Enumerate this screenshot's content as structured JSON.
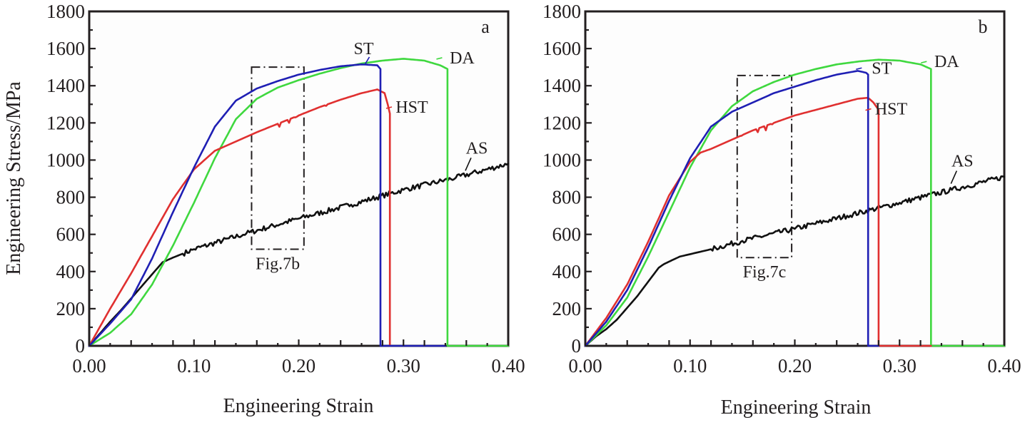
{
  "figure": {
    "y_axis_title": "Engineering Stress/MPa",
    "x_axis_title": "Engineering Strain"
  },
  "chart_data": [
    {
      "type": "line",
      "panel_label": "a",
      "title": "",
      "xlabel": "Engineering Strain",
      "ylabel": "Engineering Stress/MPa",
      "xlim": [
        0,
        0.4
      ],
      "ylim": [
        0,
        1800
      ],
      "x_ticks": [
        "0.00",
        "0.10",
        "0.20",
        "0.30",
        "0.40"
      ],
      "x_tick_values": [
        0,
        0.1,
        0.2,
        0.3,
        0.4
      ],
      "y_ticks": [
        "0",
        "200",
        "400",
        "600",
        "800",
        "1000",
        "1200",
        "1400",
        "1600",
        "1800"
      ],
      "y_tick_values": [
        0,
        200,
        400,
        600,
        800,
        1000,
        1200,
        1400,
        1600,
        1800
      ],
      "grid": false,
      "legend": "none (direct labels)",
      "series": [
        {
          "name": "ST",
          "color": "#1f1fb4",
          "label_at": [
            0.262,
            1570
          ],
          "x": [
            0,
            0.02,
            0.04,
            0.06,
            0.08,
            0.1,
            0.12,
            0.14,
            0.16,
            0.18,
            0.2,
            0.22,
            0.24,
            0.26,
            0.275,
            0.278,
            0.278,
            0.34
          ],
          "y": [
            0,
            120,
            250,
            470,
            720,
            960,
            1180,
            1320,
            1385,
            1425,
            1460,
            1485,
            1505,
            1515,
            1510,
            1490,
            0,
            0
          ]
        },
        {
          "name": "HST",
          "color": "#e03030",
          "label_at": [
            0.308,
            1255
          ],
          "serrated_range": [
            0.18,
            0.23
          ],
          "x": [
            0,
            0.02,
            0.04,
            0.06,
            0.08,
            0.1,
            0.12,
            0.14,
            0.16,
            0.18,
            0.2,
            0.22,
            0.24,
            0.26,
            0.275,
            0.282,
            0.285,
            0.287,
            0.287
          ],
          "y": [
            0,
            200,
            390,
            590,
            790,
            950,
            1050,
            1100,
            1150,
            1195,
            1240,
            1285,
            1325,
            1360,
            1380,
            1360,
            1300,
            1250,
            0
          ]
        },
        {
          "name": "DA",
          "color": "#3fd83f",
          "label_at": [
            0.356,
            1520
          ],
          "x": [
            0,
            0.02,
            0.04,
            0.06,
            0.08,
            0.1,
            0.12,
            0.14,
            0.16,
            0.18,
            0.2,
            0.22,
            0.24,
            0.26,
            0.28,
            0.3,
            0.32,
            0.335,
            0.342,
            0.342,
            0.4
          ],
          "y": [
            0,
            70,
            170,
            330,
            540,
            770,
            1010,
            1220,
            1330,
            1390,
            1430,
            1465,
            1495,
            1520,
            1535,
            1545,
            1535,
            1510,
            1490,
            0,
            0
          ]
        },
        {
          "name": "AS",
          "color": "#111111",
          "label_at": [
            0.37,
            1035
          ],
          "serrated_range": [
            0.09,
            0.4
          ],
          "x": [
            0,
            0.02,
            0.03,
            0.05,
            0.07,
            0.08,
            0.1,
            0.15,
            0.2,
            0.25,
            0.3,
            0.35,
            0.4
          ],
          "y": [
            0,
            130,
            190,
            320,
            450,
            475,
            520,
            605,
            685,
            760,
            840,
            905,
            980
          ]
        }
      ],
      "annotations": [
        {
          "text": "Fig.7b",
          "box_x": [
            0.155,
            0.205
          ],
          "box_y": [
            520,
            1500
          ]
        }
      ]
    },
    {
      "type": "line",
      "panel_label": "b",
      "title": "",
      "xlabel": "Engineering Strain",
      "ylabel": "",
      "xlim": [
        0,
        0.4
      ],
      "ylim": [
        0,
        1800
      ],
      "x_ticks": [
        "0.00",
        "0.10",
        "0.20",
        "0.30",
        "0.40"
      ],
      "x_tick_values": [
        0,
        0.1,
        0.2,
        0.3,
        0.4
      ],
      "y_ticks": [
        "0",
        "200",
        "400",
        "600",
        "800",
        "1000",
        "1200",
        "1400",
        "1600",
        "1800"
      ],
      "y_tick_values": [
        0,
        200,
        400,
        600,
        800,
        1000,
        1200,
        1400,
        1600,
        1800
      ],
      "grid": false,
      "legend": "none (direct labels)",
      "series": [
        {
          "name": "ST",
          "color": "#1f1fb4",
          "label_at": [
            0.283,
            1465
          ],
          "x": [
            0,
            0.02,
            0.04,
            0.06,
            0.08,
            0.1,
            0.12,
            0.14,
            0.16,
            0.18,
            0.2,
            0.22,
            0.24,
            0.26,
            0.268,
            0.27,
            0.27,
            0.28
          ],
          "y": [
            0,
            130,
            300,
            530,
            780,
            1010,
            1180,
            1260,
            1310,
            1360,
            1395,
            1430,
            1460,
            1480,
            1470,
            1460,
            0,
            0
          ]
        },
        {
          "name": "HST",
          "color": "#e03030",
          "label_at": [
            0.292,
            1245
          ],
          "serrated_range": [
            0.14,
            0.21
          ],
          "x": [
            0,
            0.02,
            0.04,
            0.06,
            0.08,
            0.1,
            0.11,
            0.12,
            0.14,
            0.16,
            0.18,
            0.2,
            0.22,
            0.24,
            0.26,
            0.27,
            0.275,
            0.28,
            0.28,
            0.33
          ],
          "y": [
            0,
            150,
            330,
            560,
            810,
            990,
            1040,
            1060,
            1110,
            1160,
            1200,
            1240,
            1270,
            1300,
            1330,
            1335,
            1310,
            1270,
            0,
            0
          ]
        },
        {
          "name": "DA",
          "color": "#3fd83f",
          "label_at": [
            0.345,
            1500
          ],
          "x": [
            0,
            0.02,
            0.04,
            0.06,
            0.08,
            0.1,
            0.12,
            0.14,
            0.16,
            0.18,
            0.2,
            0.22,
            0.24,
            0.26,
            0.28,
            0.3,
            0.32,
            0.33,
            0.33,
            0.4
          ],
          "y": [
            0,
            110,
            260,
            480,
            720,
            960,
            1160,
            1290,
            1370,
            1420,
            1460,
            1490,
            1515,
            1530,
            1540,
            1535,
            1515,
            1490,
            0,
            0
          ]
        },
        {
          "name": "AS",
          "color": "#111111",
          "label_at": [
            0.36,
            965
          ],
          "serrated_range": [
            0.12,
            0.4
          ],
          "x": [
            0,
            0.01,
            0.02,
            0.03,
            0.05,
            0.07,
            0.075,
            0.09,
            0.12,
            0.15,
            0.2,
            0.25,
            0.3,
            0.35,
            0.4
          ],
          "y": [
            0,
            50,
            90,
            140,
            270,
            420,
            440,
            480,
            520,
            565,
            630,
            700,
            770,
            840,
            910
          ]
        }
      ],
      "annotations": [
        {
          "text": "Fig.7c",
          "box_x": [
            0.145,
            0.197
          ],
          "box_y": [
            475,
            1455
          ]
        }
      ]
    }
  ]
}
